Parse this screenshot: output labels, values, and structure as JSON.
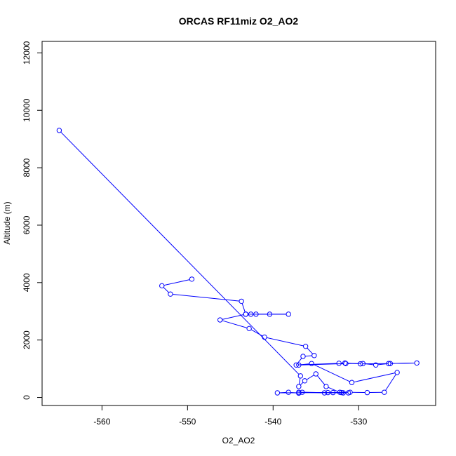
{
  "chart_data": {
    "type": "line",
    "title": "ORCAS RF11miz O2_AO2",
    "xlabel": "O2_AO2",
    "ylabel": "Altitude (m)",
    "xlim": [
      -567,
      -521
    ],
    "ylim": [
      -280,
      12400
    ],
    "xticks": [
      -560,
      -550,
      -540,
      -530
    ],
    "yticks": [
      0,
      2000,
      4000,
      6000,
      8000,
      10000,
      12000
    ],
    "xtick_labels": [
      "-560",
      "-550",
      "-540",
      "-530"
    ],
    "ytick_labels": [
      "0",
      "2000",
      "4000",
      "6000",
      "8000",
      "10000",
      "12000"
    ],
    "grid": false,
    "marker": "open-circle",
    "colors": {
      "series": "#0000ff",
      "axes": "#000000",
      "background": "#ffffff"
    },
    "series": [
      {
        "x": [
          -565.0,
          -536.8,
          -537.0,
          -536.3,
          -535.0,
          -533.8,
          -532.2,
          -531.8,
          -536.6,
          -537.0,
          -538.2,
          -539.5,
          -533.6,
          -532.0,
          -531.2,
          -537.0,
          -534.0,
          -533.0,
          -531.0,
          -529.0,
          -527.0,
          -525.5,
          -530.8,
          -535.5,
          -537.0,
          -531.5,
          -529.5,
          -528.0,
          -526.5,
          -523.2,
          -526.3,
          -529.8,
          -531.6,
          -532.3,
          -537.3,
          -536.5,
          -535.2,
          -536.2,
          -541.0,
          -542.8,
          -546.2,
          -543.2,
          -538.2,
          -540.4,
          -542.0,
          -542.6,
          -543.2,
          -543.7,
          -552.0,
          -553.0,
          -549.5
        ],
        "y": [
          9300,
          750,
          380,
          580,
          820,
          380,
          180,
          160,
          180,
          150,
          180,
          160,
          170,
          170,
          160,
          180,
          160,
          170,
          180,
          170,
          180,
          870,
          520,
          1180,
          1130,
          1180,
          1180,
          1130,
          1180,
          1200,
          1180,
          1170,
          1200,
          1190,
          1130,
          1430,
          1460,
          1780,
          2100,
          2400,
          2700,
          2900,
          2900,
          2900,
          2900,
          2900,
          2900,
          3350,
          3600,
          3890,
          4120
        ]
      }
    ]
  }
}
